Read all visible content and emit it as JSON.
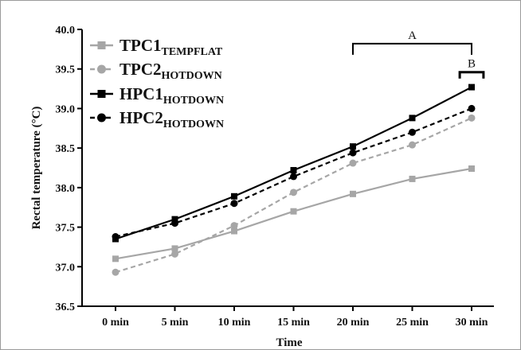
{
  "chart_data": {
    "type": "line",
    "xlabel": "Time",
    "ylabel": "Rectal temperature (°C)",
    "categories": [
      "0 min",
      "5 min",
      "10 min",
      "15 min",
      "20 min",
      "25 min",
      "30 min"
    ],
    "yticks": [
      "36.5",
      "37.0",
      "37.5",
      "38.0",
      "38.5",
      "39.0",
      "39.5",
      "40.0"
    ],
    "ylim": [
      36.5,
      40.0
    ],
    "grid": false,
    "legend_position": "top-left",
    "series": [
      {
        "name": "TPC1",
        "subscript": "TEMPFLAT",
        "color": "#a6a6a6",
        "dash": "solid",
        "marker": "square",
        "values": [
          37.1,
          37.23,
          37.45,
          37.7,
          37.92,
          38.11,
          38.24
        ]
      },
      {
        "name": "TPC2",
        "subscript": "HOTDOWN",
        "color": "#a6a6a6",
        "dash": "dashed",
        "marker": "circle",
        "values": [
          36.93,
          37.16,
          37.52,
          37.94,
          38.31,
          38.54,
          38.88
        ]
      },
      {
        "name": "HPC1",
        "subscript": "HOTDOWN",
        "color": "#000000",
        "dash": "solid",
        "marker": "square",
        "values": [
          37.35,
          37.6,
          37.89,
          38.22,
          38.52,
          38.88,
          39.27
        ]
      },
      {
        "name": "HPC2",
        "subscript": "HOTDOWN",
        "color": "#000000",
        "dash": "dashed",
        "marker": "circle",
        "values": [
          37.38,
          37.55,
          37.8,
          38.14,
          38.44,
          38.7,
          39.0
        ]
      }
    ],
    "annotations": [
      {
        "label": "A",
        "from": "20 min",
        "to": "30 min",
        "level": 39.82
      },
      {
        "label": "B",
        "from": "29 min",
        "to": "31 min",
        "level": 39.46
      }
    ]
  }
}
